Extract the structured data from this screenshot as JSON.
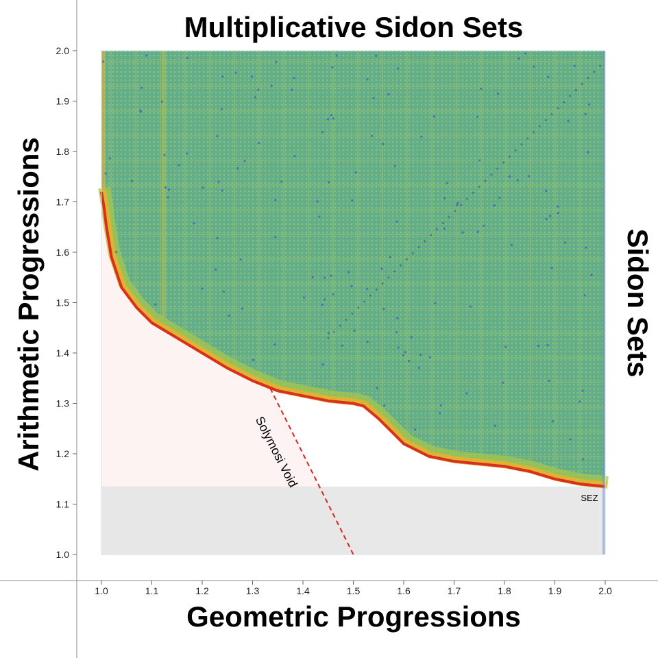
{
  "chart_data": {
    "type": "scatter",
    "title": "Multiplicative Sidon Sets",
    "xlabel": "Geometric Progressions",
    "ylabel": "Arithmetic Progressions",
    "right_label": "Sidon Sets",
    "xlim": [
      1.0,
      2.0
    ],
    "ylim": [
      1.0,
      2.0
    ],
    "xticks": [
      "1.0",
      "1.1",
      "1.2",
      "1.3",
      "1.4",
      "1.5",
      "1.6",
      "1.7",
      "1.8",
      "1.9",
      "2.0"
    ],
    "yticks": [
      "1.0",
      "1.1",
      "1.2",
      "1.3",
      "1.4",
      "1.5",
      "1.6",
      "1.7",
      "1.8",
      "1.9",
      "2.0"
    ],
    "boundary": {
      "x": [
        1.0,
        1.005,
        1.01,
        1.02,
        1.04,
        1.07,
        1.1,
        1.15,
        1.2,
        1.25,
        1.3,
        1.35,
        1.4,
        1.45,
        1.5,
        1.52,
        1.55,
        1.6,
        1.65,
        1.7,
        1.75,
        1.8,
        1.85,
        1.9,
        1.95,
        2.0
      ],
      "y": [
        1.72,
        1.69,
        1.65,
        1.59,
        1.53,
        1.49,
        1.46,
        1.43,
        1.4,
        1.37,
        1.345,
        1.325,
        1.315,
        1.305,
        1.3,
        1.295,
        1.27,
        1.22,
        1.195,
        1.185,
        1.18,
        1.175,
        1.165,
        1.15,
        1.14,
        1.135
      ]
    },
    "regions": [
      {
        "name": "Solymosi Void",
        "color": "#fdf3f3"
      },
      {
        "name": "SEZ",
        "y_range": [
          1.0,
          1.135
        ],
        "color": "#e4e4e4"
      }
    ],
    "solymosi_line": {
      "from": [
        1.335,
        1.33
      ],
      "to": [
        1.5,
        1.0
      ],
      "color": "#dd2222"
    },
    "annotations": {
      "solymosi": "Solymosi Void",
      "sez": "SEZ"
    },
    "colors": {
      "fill_main": "#5aa886",
      "low_edge": "#d83020",
      "mid_edge": "#e8b030",
      "lime": "#a8c848",
      "blue_dot": "#4060c0"
    }
  }
}
